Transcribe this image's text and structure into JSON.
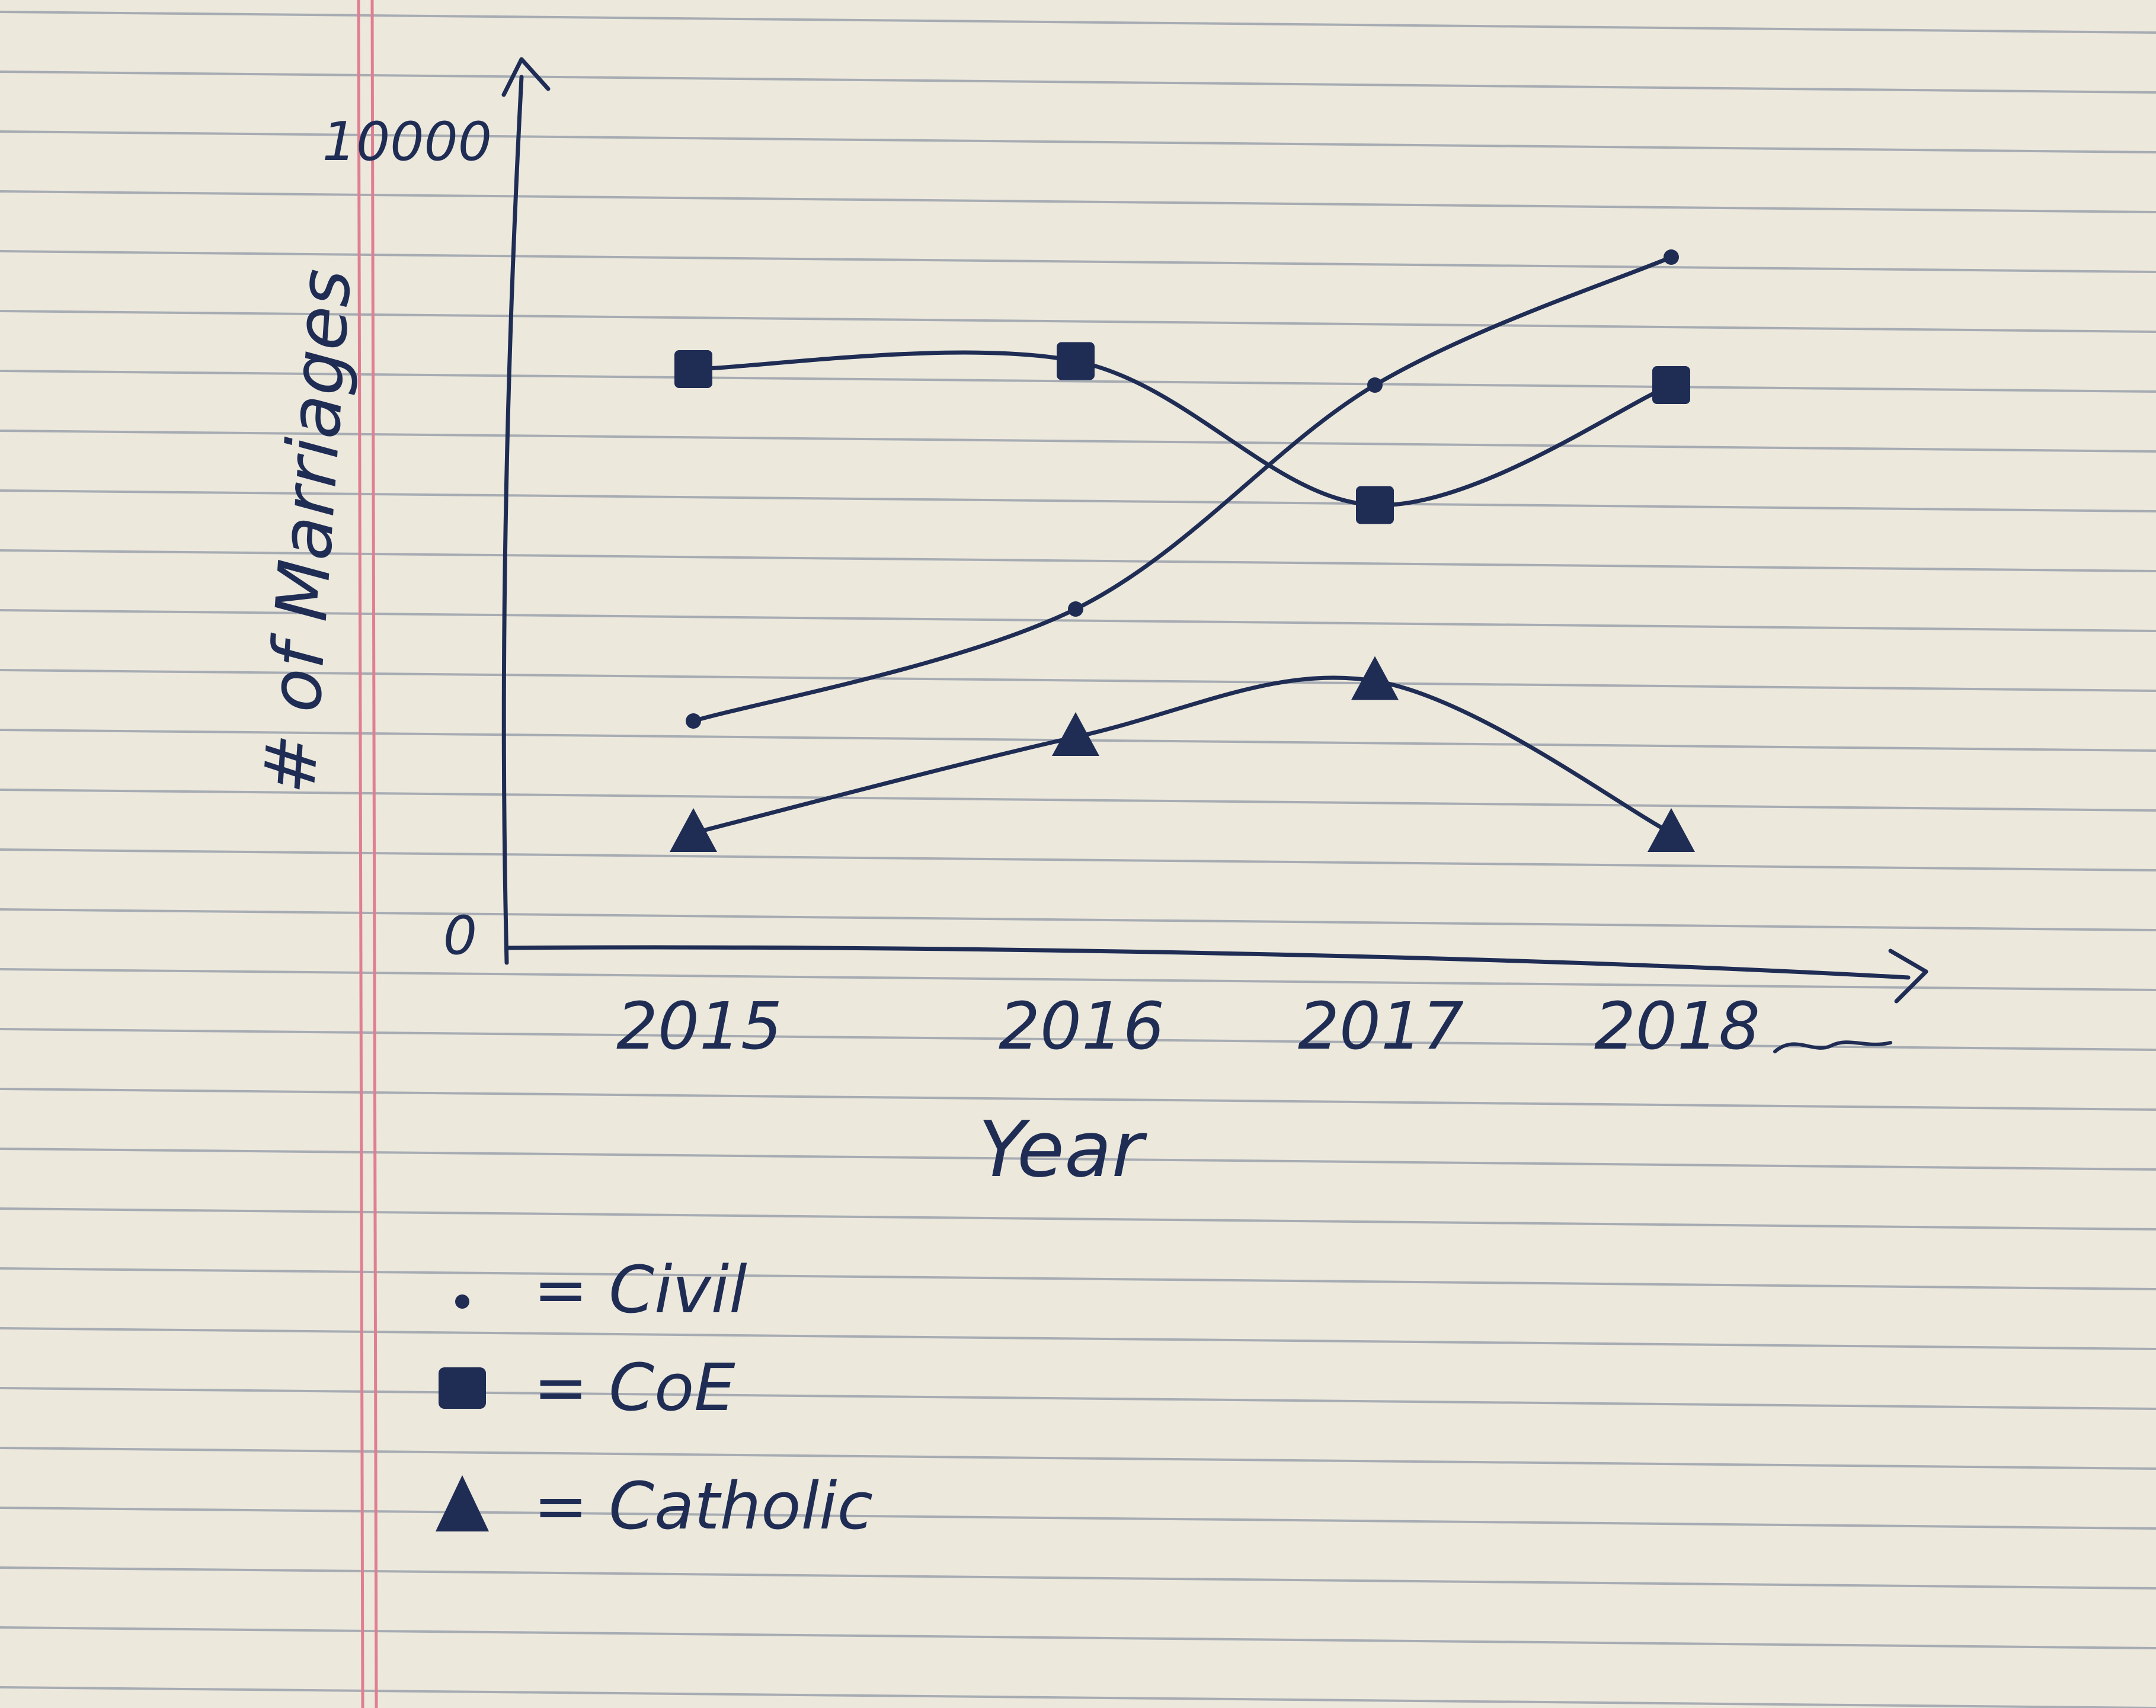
{
  "chart_data": {
    "type": "line",
    "categories": [
      "2015",
      "2016",
      "2017",
      "2018"
    ],
    "xlabel": "Year",
    "ylabel": "# of Marriages",
    "ylim": [
      0,
      10000
    ],
    "y_tick_labels": [
      "0",
      "10000"
    ],
    "grid": false,
    "legend_position": "bottom-left",
    "series": [
      {
        "name": "Civil",
        "marker": "dot",
        "values": [
          2800,
          4200,
          7000,
          8600
        ]
      },
      {
        "name": "CoE",
        "marker": "square",
        "values": [
          7200,
          7300,
          5500,
          7000
        ]
      },
      {
        "name": "Catholic",
        "marker": "triangle",
        "values": [
          1400,
          2600,
          3300,
          1400
        ]
      }
    ],
    "legend": [
      {
        "symbol": "•",
        "text": "= Civil"
      },
      {
        "symbol": "■",
        "text": "= CoE"
      },
      {
        "symbol": "▲",
        "text": "= Catholic"
      }
    ],
    "ink_color": "#1f2d55",
    "paper_color": "#ece8dc",
    "rule_color": "#a7acb3",
    "margin_color": "#e07f92"
  }
}
